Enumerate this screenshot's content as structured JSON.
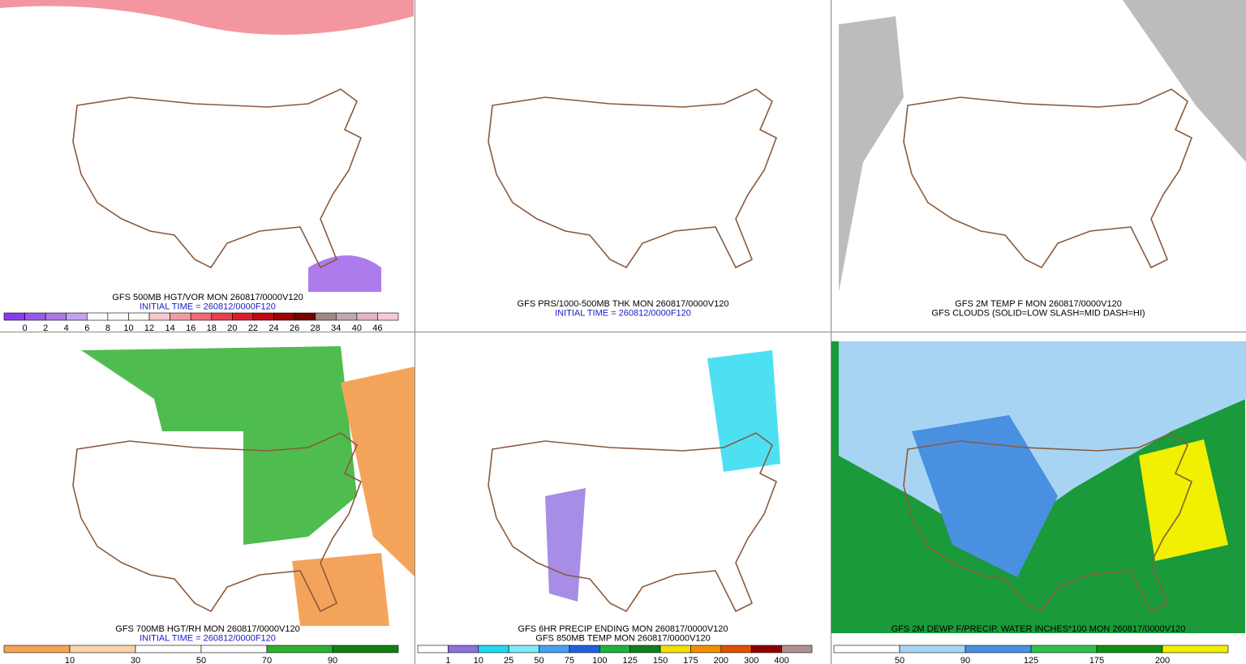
{
  "panels": [
    {
      "caption": [
        "GFS 500MB HGT/VOR MON 260817/0000V120",
        "INITIAL TIME = 260812/0000F120"
      ],
      "colorbar": {
        "labels": [
          0,
          2,
          4,
          6,
          8,
          10,
          12,
          14,
          16,
          18,
          20,
          22,
          24,
          26,
          28,
          34,
          40,
          46
        ],
        "colors": [
          "#8a3cf0",
          "#9a5ae8",
          "#a978e6",
          "#c0a4ee",
          "#ffffff",
          "#ffffff",
          "#ffffff",
          "#f8c8cc",
          "#f49aa4",
          "#ee6a78",
          "#e8404e",
          "#d81e2a",
          "#c00a14",
          "#9a0000",
          "#780000",
          "#a08888",
          "#c0a8b0",
          "#e0b8c0",
          "#f8c8d8"
        ]
      }
    },
    {
      "caption": [
        "GFS PRS/1000-500MB THK MON 260817/0000V120",
        "INITIAL TIME = 260812/0000F120"
      ]
    },
    {
      "caption": [
        "GFS 2M TEMP F MON 260817/0000V120",
        "GFS CLOUDS (SOLID=LOW SLASH=MID DASH=HI)"
      ]
    },
    {
      "caption": [
        "GFS 700MB HGT/RH MON 260817/0000V120",
        "INITIAL TIME = 260812/0000F120"
      ],
      "colorbar": {
        "labels": [
          10,
          30,
          50,
          70,
          90
        ],
        "colors": [
          "#f4a45a",
          "#fbd3a8",
          "#ffffff",
          "#ffffff",
          "#30b030",
          "#108010"
        ]
      }
    },
    {
      "caption": [
        "GFS 6HR PRECIP ENDING MON 260817/0000V120",
        "GFS 850MB TEMP MON 260817/0000V120"
      ],
      "colorbar": {
        "labels": [
          1,
          10,
          25,
          50,
          75,
          100,
          125,
          150,
          175,
          200,
          300,
          400
        ],
        "colors": [
          "#ffffff",
          "#9070e0",
          "#20d8f0",
          "#80e8f8",
          "#4aa0f0",
          "#2060e0",
          "#20b040",
          "#108020",
          "#f0e000",
          "#f09000",
          "#e05000",
          "#900000",
          "#b09090"
        ]
      }
    },
    {
      "caption": [
        "GFS 2M DEWP F/PRECIP. WATER INCHES*100 MON 260817/0000V120"
      ],
      "colorbar": {
        "labels": [
          50,
          90,
          125,
          175,
          200
        ],
        "colors": [
          "#ffffff",
          "#a8d4f4",
          "#4a90e0",
          "#30c050",
          "#109010",
          "#f0f000"
        ]
      }
    }
  ]
}
